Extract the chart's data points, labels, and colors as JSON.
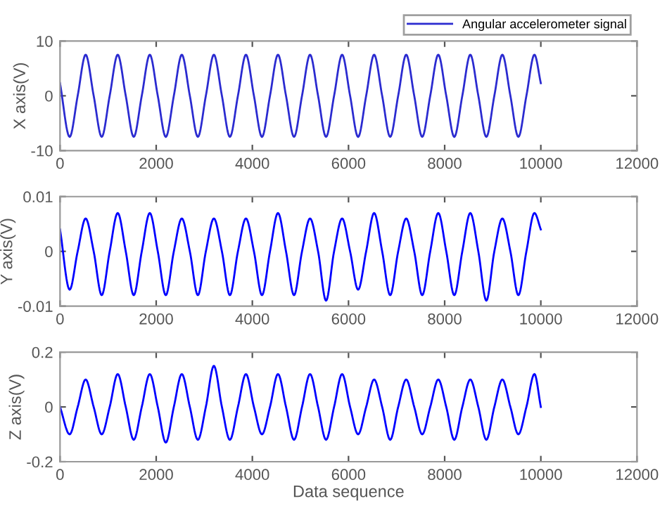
{
  "chart_data": [
    {
      "type": "line",
      "ylabel": "X axis(V)",
      "xlim": [
        0,
        12000
      ],
      "xticks": [
        0,
        2000,
        4000,
        6000,
        8000,
        10000,
        12000
      ],
      "ylim": [
        -10,
        10
      ],
      "yticks": [
        -10,
        0,
        10
      ],
      "grid": false,
      "legend": "top right",
      "line_style": "solid",
      "series": [
        {
          "name": "Angular accelerometer signal",
          "color": "#2b2bd0",
          "x": [
            0,
            200,
            367,
            533,
            700,
            867,
            1033,
            1200,
            1367,
            1533,
            1700,
            1867,
            2033,
            2200,
            2367,
            2533,
            2700,
            2867,
            3033,
            3200,
            3367,
            3533,
            3700,
            3867,
            4033,
            4200,
            4367,
            4533,
            4700,
            4867,
            5033,
            5200,
            5367,
            5533,
            5700,
            5867,
            6033,
            6200,
            6367,
            6533,
            6700,
            6867,
            7033,
            7200,
            7367,
            7533,
            7700,
            7867,
            8033,
            8200,
            8367,
            8533,
            8700,
            8867,
            9033,
            9200,
            9367,
            9533,
            9700,
            9867,
            10000
          ],
          "values": [
            2.3,
            -7.5,
            0,
            7.5,
            0,
            -7.5,
            0,
            7.5,
            0,
            -7.5,
            0,
            7.5,
            0,
            -7.5,
            0,
            7.5,
            0,
            -7.5,
            0,
            7.5,
            0,
            -7.5,
            0,
            7.5,
            0,
            -7.5,
            0,
            7.5,
            0,
            -7.5,
            0,
            7.5,
            0,
            -7.5,
            0,
            7.5,
            0,
            -7.5,
            0,
            7.5,
            0,
            -7.5,
            0,
            7.5,
            0,
            -7.5,
            0,
            7.5,
            0,
            -7.5,
            0,
            7.5,
            0,
            -7.5,
            0,
            7.5,
            0,
            -7.5,
            0,
            7.5,
            2.3
          ]
        }
      ]
    },
    {
      "type": "line",
      "ylabel": "Y axis(V)",
      "xlim": [
        0,
        12000
      ],
      "xticks": [
        0,
        2000,
        4000,
        6000,
        8000,
        10000,
        12000
      ],
      "ylim": [
        -0.01,
        0.01
      ],
      "yticks": [
        -0.01,
        0,
        0.01
      ],
      "grid": false,
      "line_style": "solid",
      "series": [
        {
          "color": "#0000ff",
          "x": [
            0,
            200,
            367,
            533,
            700,
            867,
            1033,
            1200,
            1367,
            1533,
            1700,
            1867,
            2033,
            2200,
            2367,
            2533,
            2700,
            2867,
            3033,
            3200,
            3367,
            3533,
            3700,
            3867,
            4033,
            4200,
            4367,
            4533,
            4700,
            4867,
            5033,
            5200,
            5367,
            5533,
            5700,
            5867,
            6033,
            6200,
            6367,
            6533,
            6700,
            6867,
            7033,
            7200,
            7367,
            7533,
            7700,
            7867,
            8033,
            8200,
            8367,
            8533,
            8700,
            8867,
            9033,
            9200,
            9367,
            9533,
            9700,
            9867,
            10000
          ],
          "values": [
            0.004,
            -0.007,
            0,
            0.006,
            0,
            -0.008,
            0,
            0.007,
            0,
            -0.008,
            0,
            0.007,
            0,
            -0.008,
            0,
            0.006,
            0,
            -0.008,
            0,
            0.006,
            0,
            -0.008,
            0,
            0.006,
            0,
            -0.008,
            0,
            0.007,
            0,
            -0.008,
            0,
            0.006,
            0,
            -0.009,
            0,
            0.006,
            0,
            -0.007,
            0,
            0.007,
            0,
            -0.008,
            0,
            0.006,
            0,
            -0.008,
            0,
            0.007,
            0,
            -0.008,
            0,
            0.007,
            0,
            -0.009,
            0,
            0.006,
            0,
            -0.008,
            0,
            0.007,
            0.004
          ]
        }
      ]
    },
    {
      "type": "line",
      "ylabel": "Z axis(V)",
      "xlabel": "Data sequence",
      "xlim": [
        0,
        12000
      ],
      "xticks": [
        0,
        2000,
        4000,
        6000,
        8000,
        10000,
        12000
      ],
      "ylim": [
        -0.2,
        0.2
      ],
      "yticks": [
        -0.2,
        0,
        0.2
      ],
      "grid": false,
      "line_style": "solid",
      "series": [
        {
          "color": "#0000ff",
          "x": [
            0,
            200,
            367,
            533,
            700,
            867,
            1033,
            1200,
            1367,
            1533,
            1700,
            1867,
            2033,
            2200,
            2367,
            2533,
            2700,
            2867,
            3033,
            3200,
            3367,
            3533,
            3700,
            3867,
            4033,
            4200,
            4367,
            4533,
            4700,
            4867,
            5033,
            5200,
            5367,
            5533,
            5700,
            5867,
            6033,
            6200,
            6367,
            6533,
            6700,
            6867,
            7033,
            7200,
            7367,
            7533,
            7700,
            7867,
            8033,
            8200,
            8367,
            8533,
            8700,
            8867,
            9033,
            9200,
            9367,
            9533,
            9700,
            9867,
            10000
          ],
          "values": [
            0,
            -0.1,
            0,
            0.1,
            0,
            -0.1,
            0,
            0.12,
            0,
            -0.12,
            0,
            0.12,
            0,
            -0.13,
            0,
            0.12,
            0,
            -0.12,
            0,
            0.15,
            0,
            -0.12,
            0,
            0.12,
            0,
            -0.1,
            0,
            0.12,
            0,
            -0.12,
            0,
            0.12,
            0,
            -0.12,
            0,
            0.12,
            0,
            -0.1,
            0,
            0.1,
            0,
            -0.12,
            0,
            0.1,
            0,
            -0.1,
            0,
            0.1,
            0,
            -0.12,
            0,
            0.1,
            0,
            -0.12,
            0,
            0.1,
            0,
            -0.1,
            0,
            0.12,
            0
          ]
        }
      ]
    }
  ]
}
